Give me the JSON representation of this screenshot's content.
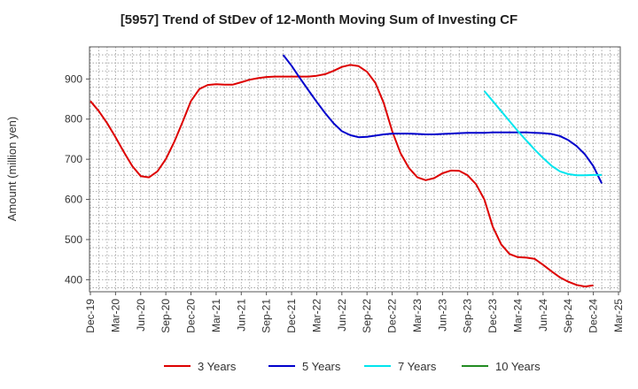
{
  "chart_data": {
    "type": "line",
    "title": "[5957]  Trend of StDev of 12-Month Moving Sum of Investing CF",
    "xlabel": "",
    "ylabel": "Amount (million yen)",
    "ylim": [
      370,
      980
    ],
    "yticks": [
      400,
      500,
      600,
      700,
      800,
      900
    ],
    "x_tick_labels": [
      "Dec-19",
      "Mar-20",
      "Jun-20",
      "Sep-20",
      "Dec-20",
      "Mar-21",
      "Jun-21",
      "Sep-21",
      "Dec-21",
      "Mar-22",
      "Jun-22",
      "Sep-22",
      "Dec-22",
      "Mar-23",
      "Jun-23",
      "Sep-23",
      "Dec-23",
      "Mar-24",
      "Jun-24",
      "Sep-24",
      "Dec-24",
      "Mar-25"
    ],
    "grid": true,
    "legend_position": "bottom",
    "series": [
      {
        "name": "3 Years",
        "color": "#dd0000",
        "points": [
          [
            "2019-12",
            845
          ],
          [
            "2020-01",
            820
          ],
          [
            "2020-02",
            790
          ],
          [
            "2020-03",
            755
          ],
          [
            "2020-04",
            718
          ],
          [
            "2020-05",
            683
          ],
          [
            "2020-06",
            658
          ],
          [
            "2020-07",
            655
          ],
          [
            "2020-08",
            670
          ],
          [
            "2020-09",
            700
          ],
          [
            "2020-10",
            743
          ],
          [
            "2020-11",
            793
          ],
          [
            "2020-12",
            845
          ],
          [
            "2021-01",
            875
          ],
          [
            "2021-02",
            885
          ],
          [
            "2021-03",
            887
          ],
          [
            "2021-04",
            886
          ],
          [
            "2021-05",
            886
          ],
          [
            "2021-06",
            892
          ],
          [
            "2021-07",
            898
          ],
          [
            "2021-08",
            902
          ],
          [
            "2021-09",
            905
          ],
          [
            "2021-10",
            906
          ],
          [
            "2021-11",
            906
          ],
          [
            "2021-12",
            906
          ],
          [
            "2022-01",
            906
          ],
          [
            "2022-02",
            906
          ],
          [
            "2022-03",
            908
          ],
          [
            "2022-04",
            912
          ],
          [
            "2022-05",
            920
          ],
          [
            "2022-06",
            930
          ],
          [
            "2022-07",
            935
          ],
          [
            "2022-08",
            932
          ],
          [
            "2022-09",
            918
          ],
          [
            "2022-10",
            890
          ],
          [
            "2022-11",
            840
          ],
          [
            "2022-12",
            770
          ],
          [
            "2023-01",
            715
          ],
          [
            "2023-02",
            678
          ],
          [
            "2023-03",
            655
          ],
          [
            "2023-04",
            648
          ],
          [
            "2023-05",
            653
          ],
          [
            "2023-06",
            665
          ],
          [
            "2023-07",
            672
          ],
          [
            "2023-08",
            671
          ],
          [
            "2023-09",
            660
          ],
          [
            "2023-10",
            638
          ],
          [
            "2023-11",
            600
          ],
          [
            "2023-12",
            532
          ],
          [
            "2024-01",
            488
          ],
          [
            "2024-02",
            464
          ],
          [
            "2024-03",
            456
          ],
          [
            "2024-04",
            455
          ],
          [
            "2024-05",
            452
          ],
          [
            "2024-06",
            437
          ],
          [
            "2024-07",
            421
          ],
          [
            "2024-08",
            406
          ],
          [
            "2024-09",
            395
          ],
          [
            "2024-10",
            387
          ],
          [
            "2024-11",
            383
          ],
          [
            "2024-12",
            386
          ]
        ]
      },
      {
        "name": "5 Years",
        "color": "#0000cc",
        "points": [
          [
            "2021-11",
            960
          ],
          [
            "2021-12",
            933
          ],
          [
            "2022-01",
            902
          ],
          [
            "2022-02",
            872
          ],
          [
            "2022-03",
            843
          ],
          [
            "2022-04",
            815
          ],
          [
            "2022-05",
            790
          ],
          [
            "2022-06",
            770
          ],
          [
            "2022-07",
            760
          ],
          [
            "2022-08",
            755
          ],
          [
            "2022-09",
            756
          ],
          [
            "2022-10",
            759
          ],
          [
            "2022-11",
            762
          ],
          [
            "2022-12",
            764
          ],
          [
            "2023-01",
            764
          ],
          [
            "2023-02",
            764
          ],
          [
            "2023-03",
            763
          ],
          [
            "2023-04",
            762
          ],
          [
            "2023-05",
            762
          ],
          [
            "2023-06",
            763
          ],
          [
            "2023-07",
            764
          ],
          [
            "2023-08",
            765
          ],
          [
            "2023-09",
            766
          ],
          [
            "2023-10",
            766
          ],
          [
            "2023-11",
            766
          ],
          [
            "2023-12",
            767
          ],
          [
            "2024-01",
            767
          ],
          [
            "2024-02",
            767
          ],
          [
            "2024-03",
            767
          ],
          [
            "2024-04",
            767
          ],
          [
            "2024-05",
            766
          ],
          [
            "2024-06",
            765
          ],
          [
            "2024-07",
            763
          ],
          [
            "2024-08",
            758
          ],
          [
            "2024-09",
            748
          ],
          [
            "2024-10",
            733
          ],
          [
            "2024-11",
            712
          ],
          [
            "2024-12",
            683
          ],
          [
            "2025-01",
            640
          ]
        ]
      },
      {
        "name": "7 Years",
        "color": "#00e5ee",
        "points": [
          [
            "2023-11",
            870
          ],
          [
            "2023-12",
            845
          ],
          [
            "2024-01",
            820
          ],
          [
            "2024-02",
            795
          ],
          [
            "2024-03",
            770
          ],
          [
            "2024-04",
            747
          ],
          [
            "2024-05",
            724
          ],
          [
            "2024-06",
            703
          ],
          [
            "2024-07",
            684
          ],
          [
            "2024-08",
            670
          ],
          [
            "2024-09",
            663
          ],
          [
            "2024-10",
            660
          ],
          [
            "2024-11",
            660
          ],
          [
            "2024-12",
            661
          ],
          [
            "2025-01",
            661
          ]
        ]
      },
      {
        "name": "10 Years",
        "color": "#228b22",
        "points": []
      }
    ]
  }
}
